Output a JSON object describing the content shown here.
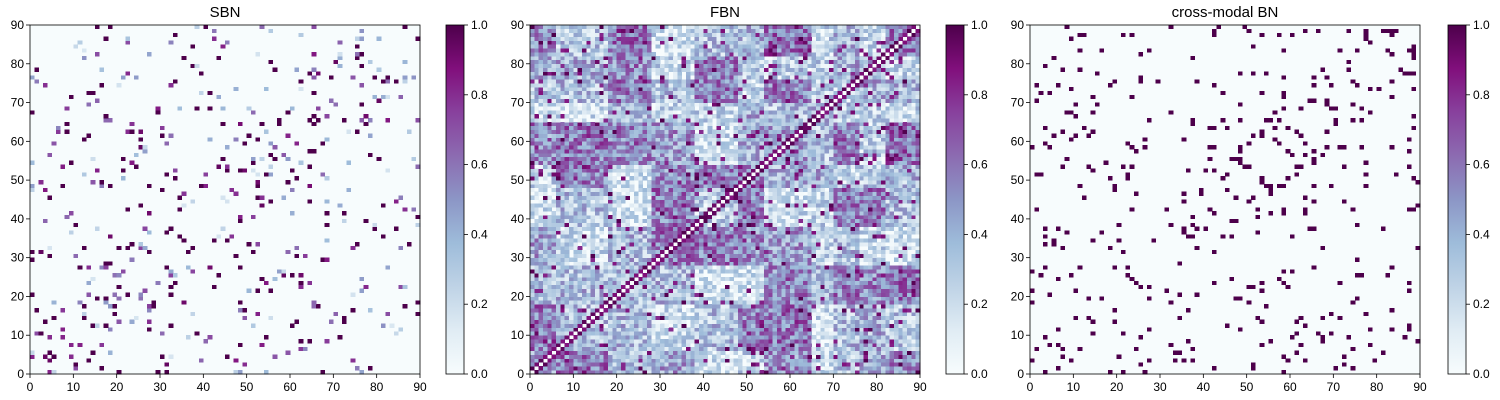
{
  "chart_data": [
    {
      "type": "heatmap",
      "title": "SBN",
      "xlabel": "",
      "ylabel": "",
      "grid_size": 90,
      "xlim": [
        0,
        90
      ],
      "ylim": [
        0,
        90
      ],
      "x_ticks": [
        0,
        10,
        20,
        30,
        40,
        50,
        60,
        70,
        80,
        90
      ],
      "y_ticks": [
        0,
        10,
        20,
        30,
        40,
        50,
        60,
        70,
        80,
        90
      ],
      "colorbar": {
        "min": 0.0,
        "max": 1.0,
        "ticks": [
          "0.0",
          "0.2",
          "0.4",
          "0.6",
          "0.8",
          "1.0"
        ]
      },
      "colormap": "BuPu",
      "pattern": "sparse",
      "density": 0.05,
      "seed": 11,
      "grid": false
    },
    {
      "type": "heatmap",
      "title": "FBN",
      "xlabel": "",
      "ylabel": "",
      "grid_size": 90,
      "xlim": [
        0,
        90
      ],
      "ylim": [
        0,
        90
      ],
      "x_ticks": [
        0,
        10,
        20,
        30,
        40,
        50,
        60,
        70,
        80,
        90
      ],
      "y_ticks": [
        0,
        10,
        20,
        30,
        40,
        50,
        60,
        70,
        80,
        90
      ],
      "colorbar": {
        "min": 0.0,
        "max": 1.0,
        "ticks": [
          "0.0",
          "0.2",
          "0.4",
          "0.6",
          "0.8",
          "1.0"
        ]
      },
      "colormap": "BuPu",
      "pattern": "dense",
      "density": 0.85,
      "seed": 29,
      "grid": false
    },
    {
      "type": "heatmap",
      "title": "cross-modal BN",
      "xlabel": "",
      "ylabel": "",
      "grid_size": 90,
      "xlim": [
        0,
        90
      ],
      "ylim": [
        0,
        90
      ],
      "x_ticks": [
        0,
        10,
        20,
        30,
        40,
        50,
        60,
        70,
        80,
        90
      ],
      "y_ticks": [
        0,
        10,
        20,
        30,
        40,
        50,
        60,
        70,
        80,
        90
      ],
      "colorbar": {
        "min": 0.0,
        "max": 1.0,
        "ticks": [
          "0.0",
          "0.2",
          "0.4",
          "0.6",
          "0.8",
          "1.0"
        ]
      },
      "colormap": "BuPu",
      "pattern": "binary-sparse",
      "density": 0.04,
      "seed": 47,
      "grid": false
    }
  ]
}
